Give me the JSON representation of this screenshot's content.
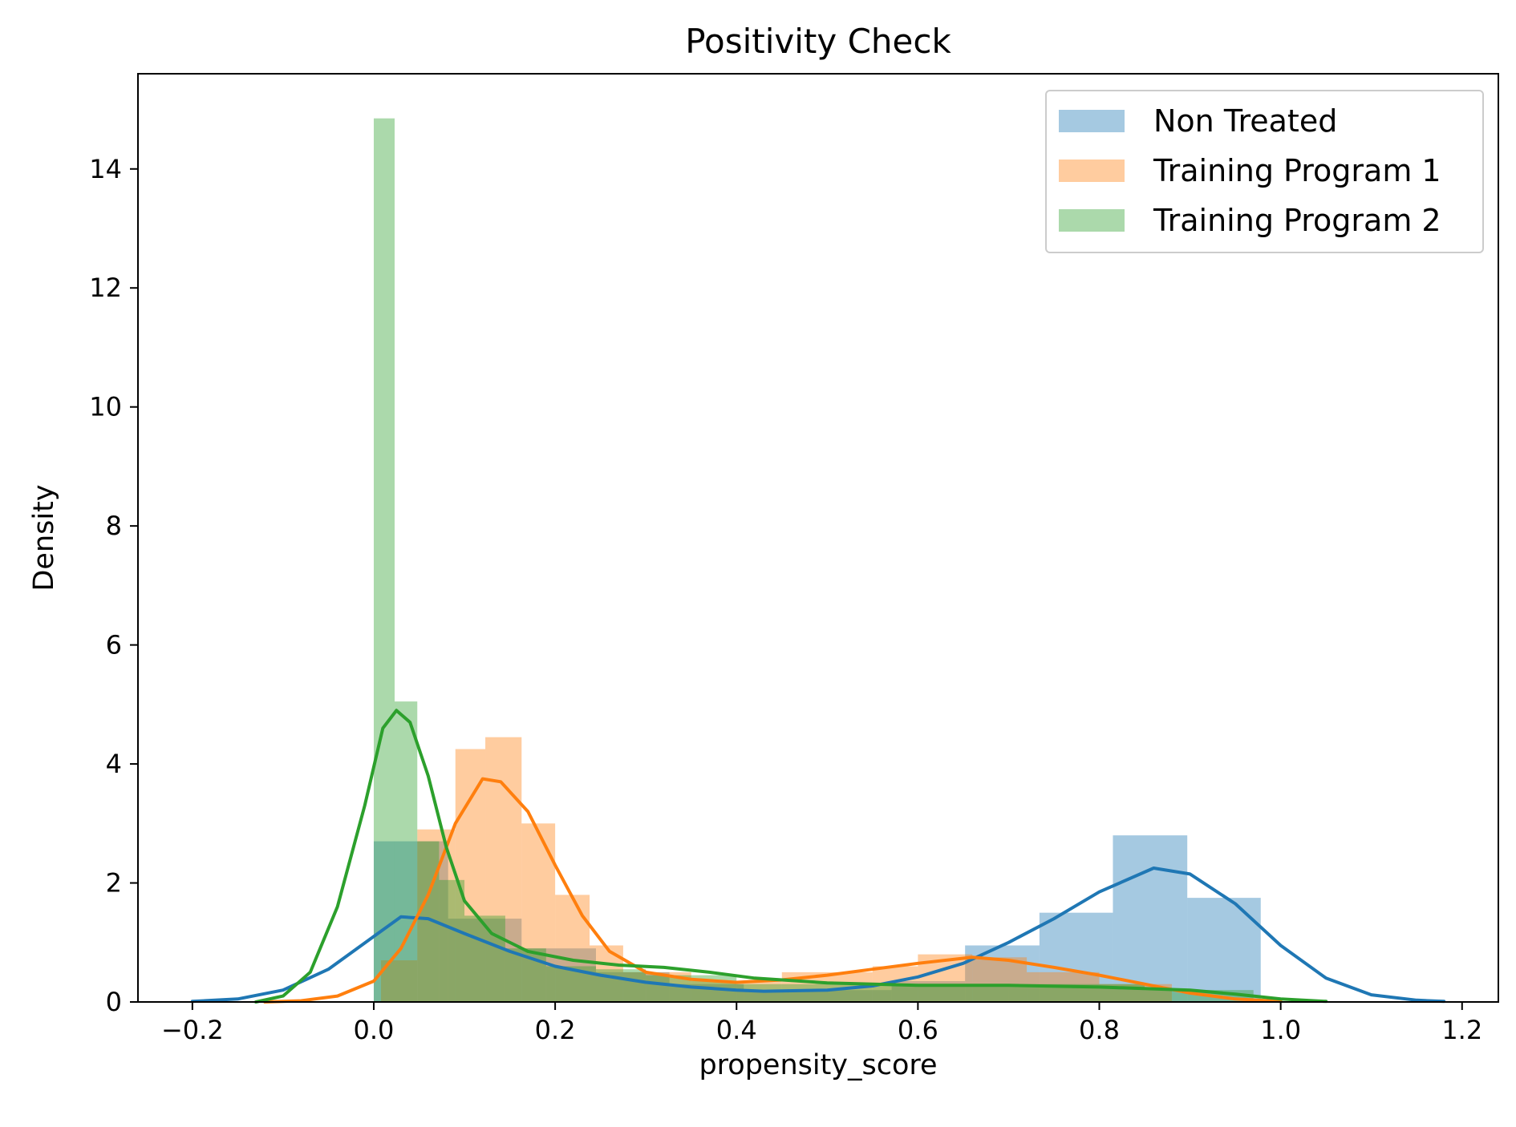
{
  "chart_data": {
    "type": "histogram-kde",
    "title": "Positivity Check",
    "xlabel": "propensity_score",
    "ylabel": "Density",
    "xlim": [
      -0.26,
      1.24
    ],
    "ylim": [
      0,
      15.6
    ],
    "xticks": [
      -0.2,
      0.0,
      0.2,
      0.4,
      0.6,
      0.8,
      1.0,
      1.2
    ],
    "xtick_labels": [
      "−0.2",
      "0.0",
      "0.2",
      "0.4",
      "0.6",
      "0.8",
      "1.0",
      "1.2"
    ],
    "yticks": [
      0,
      2,
      4,
      6,
      8,
      10,
      12,
      14
    ],
    "ytick_labels": [
      "0",
      "2",
      "4",
      "6",
      "8",
      "10",
      "12",
      "14"
    ],
    "grid": false,
    "legend_position": "top-right",
    "series": [
      {
        "name": "Non Treated",
        "color": "#1f77b4",
        "bars": [
          {
            "x0": 0.0,
            "x1": 0.082,
            "h": 2.7
          },
          {
            "x0": 0.082,
            "x1": 0.163,
            "h": 1.4
          },
          {
            "x0": 0.163,
            "x1": 0.245,
            "h": 0.9
          },
          {
            "x0": 0.245,
            "x1": 0.326,
            "h": 0.5
          },
          {
            "x0": 0.326,
            "x1": 0.408,
            "h": 0.3
          },
          {
            "x0": 0.408,
            "x1": 0.489,
            "h": 0.2
          },
          {
            "x0": 0.489,
            "x1": 0.571,
            "h": 0.2
          },
          {
            "x0": 0.571,
            "x1": 0.652,
            "h": 0.35
          },
          {
            "x0": 0.652,
            "x1": 0.734,
            "h": 0.95
          },
          {
            "x0": 0.734,
            "x1": 0.815,
            "h": 1.5
          },
          {
            "x0": 0.815,
            "x1": 0.897,
            "h": 2.8
          },
          {
            "x0": 0.897,
            "x1": 0.978,
            "h": 1.75
          }
        ],
        "kde": [
          [
            -0.2,
            0.01
          ],
          [
            -0.15,
            0.05
          ],
          [
            -0.1,
            0.2
          ],
          [
            -0.05,
            0.55
          ],
          [
            0.0,
            1.1
          ],
          [
            0.03,
            1.43
          ],
          [
            0.06,
            1.4
          ],
          [
            0.1,
            1.15
          ],
          [
            0.15,
            0.85
          ],
          [
            0.2,
            0.6
          ],
          [
            0.25,
            0.45
          ],
          [
            0.3,
            0.33
          ],
          [
            0.35,
            0.25
          ],
          [
            0.4,
            0.2
          ],
          [
            0.43,
            0.18
          ],
          [
            0.5,
            0.2
          ],
          [
            0.55,
            0.27
          ],
          [
            0.6,
            0.42
          ],
          [
            0.65,
            0.65
          ],
          [
            0.7,
            1.0
          ],
          [
            0.75,
            1.4
          ],
          [
            0.8,
            1.85
          ],
          [
            0.86,
            2.25
          ],
          [
            0.9,
            2.15
          ],
          [
            0.95,
            1.65
          ],
          [
            1.0,
            0.95
          ],
          [
            1.05,
            0.4
          ],
          [
            1.1,
            0.12
          ],
          [
            1.15,
            0.03
          ],
          [
            1.18,
            0.01
          ]
        ]
      },
      {
        "name": "Training Program 1",
        "color": "#ff7f0e",
        "bars": [
          {
            "x0": 0.008,
            "x1": 0.048,
            "h": 0.7
          },
          {
            "x0": 0.048,
            "x1": 0.09,
            "h": 2.9
          },
          {
            "x0": 0.09,
            "x1": 0.123,
            "h": 4.25
          },
          {
            "x0": 0.123,
            "x1": 0.163,
            "h": 4.45
          },
          {
            "x0": 0.163,
            "x1": 0.2,
            "h": 3.0
          },
          {
            "x0": 0.2,
            "x1": 0.238,
            "h": 1.8
          },
          {
            "x0": 0.238,
            "x1": 0.275,
            "h": 0.95
          },
          {
            "x0": 0.275,
            "x1": 0.35,
            "h": 0.5
          },
          {
            "x0": 0.35,
            "x1": 0.45,
            "h": 0.35
          },
          {
            "x0": 0.45,
            "x1": 0.55,
            "h": 0.5
          },
          {
            "x0": 0.55,
            "x1": 0.6,
            "h": 0.6
          },
          {
            "x0": 0.6,
            "x1": 0.66,
            "h": 0.8
          },
          {
            "x0": 0.66,
            "x1": 0.72,
            "h": 0.75
          },
          {
            "x0": 0.72,
            "x1": 0.8,
            "h": 0.5
          },
          {
            "x0": 0.8,
            "x1": 0.88,
            "h": 0.3
          }
        ],
        "kde": [
          [
            -0.12,
            0.0
          ],
          [
            -0.08,
            0.02
          ],
          [
            -0.04,
            0.1
          ],
          [
            0.0,
            0.35
          ],
          [
            0.03,
            0.9
          ],
          [
            0.06,
            1.8
          ],
          [
            0.09,
            3.0
          ],
          [
            0.12,
            3.75
          ],
          [
            0.14,
            3.7
          ],
          [
            0.17,
            3.2
          ],
          [
            0.2,
            2.3
          ],
          [
            0.23,
            1.45
          ],
          [
            0.26,
            0.85
          ],
          [
            0.3,
            0.5
          ],
          [
            0.35,
            0.38
          ],
          [
            0.4,
            0.33
          ],
          [
            0.45,
            0.37
          ],
          [
            0.5,
            0.45
          ],
          [
            0.55,
            0.55
          ],
          [
            0.6,
            0.65
          ],
          [
            0.66,
            0.75
          ],
          [
            0.7,
            0.7
          ],
          [
            0.75,
            0.58
          ],
          [
            0.8,
            0.45
          ],
          [
            0.85,
            0.3
          ],
          [
            0.9,
            0.15
          ],
          [
            0.95,
            0.05
          ],
          [
            1.0,
            0.01
          ]
        ]
      },
      {
        "name": "Training Program 2",
        "color": "#2ca02c",
        "bars": [
          {
            "x0": 0.0,
            "x1": 0.023,
            "h": 14.85
          },
          {
            "x0": 0.023,
            "x1": 0.048,
            "h": 5.05
          },
          {
            "x0": 0.048,
            "x1": 0.072,
            "h": 2.7
          },
          {
            "x0": 0.072,
            "x1": 0.1,
            "h": 2.05
          },
          {
            "x0": 0.1,
            "x1": 0.145,
            "h": 1.45
          },
          {
            "x0": 0.145,
            "x1": 0.19,
            "h": 0.9
          },
          {
            "x0": 0.19,
            "x1": 0.245,
            "h": 0.6
          },
          {
            "x0": 0.245,
            "x1": 0.3,
            "h": 0.55
          },
          {
            "x0": 0.3,
            "x1": 0.4,
            "h": 0.45
          },
          {
            "x0": 0.4,
            "x1": 0.55,
            "h": 0.3
          },
          {
            "x0": 0.55,
            "x1": 0.7,
            "h": 0.3
          },
          {
            "x0": 0.7,
            "x1": 0.85,
            "h": 0.3
          },
          {
            "x0": 0.85,
            "x1": 0.97,
            "h": 0.2
          }
        ],
        "kde": [
          [
            -0.13,
            0.0
          ],
          [
            -0.1,
            0.1
          ],
          [
            -0.07,
            0.5
          ],
          [
            -0.04,
            1.6
          ],
          [
            -0.01,
            3.3
          ],
          [
            0.01,
            4.6
          ],
          [
            0.025,
            4.9
          ],
          [
            0.04,
            4.7
          ],
          [
            0.06,
            3.8
          ],
          [
            0.08,
            2.6
          ],
          [
            0.1,
            1.7
          ],
          [
            0.13,
            1.15
          ],
          [
            0.17,
            0.85
          ],
          [
            0.22,
            0.7
          ],
          [
            0.27,
            0.62
          ],
          [
            0.32,
            0.58
          ],
          [
            0.37,
            0.5
          ],
          [
            0.42,
            0.4
          ],
          [
            0.5,
            0.32
          ],
          [
            0.6,
            0.28
          ],
          [
            0.7,
            0.28
          ],
          [
            0.8,
            0.25
          ],
          [
            0.9,
            0.2
          ],
          [
            0.95,
            0.13
          ],
          [
            1.0,
            0.05
          ],
          [
            1.05,
            0.01
          ]
        ]
      }
    ]
  }
}
